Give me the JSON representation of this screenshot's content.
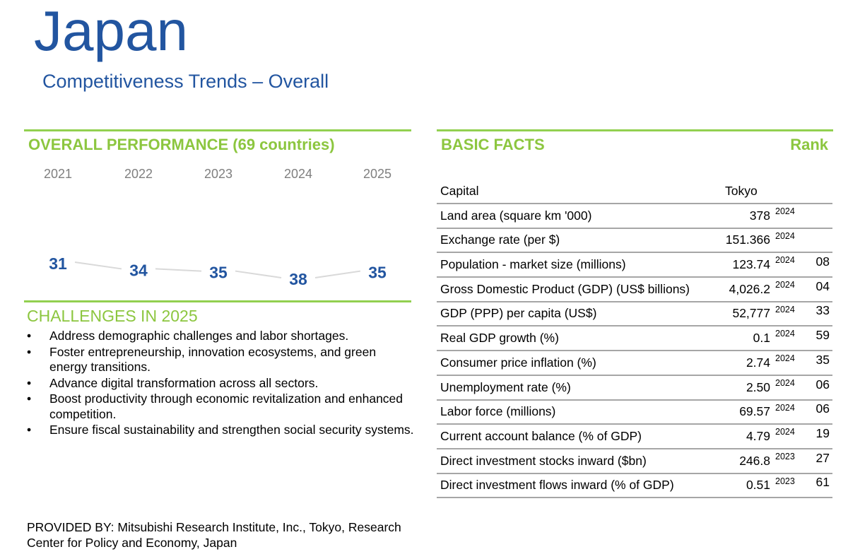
{
  "header": {
    "title": "Japan",
    "subtitle": "Competitiveness Trends – Overall"
  },
  "performance": {
    "heading": "OVERALL PERFORMANCE  (69 countries)",
    "colors": {
      "rank_text": "#2255a0",
      "connector": "#d9d9d9",
      "accent": "#8cc63f"
    }
  },
  "chart_data": {
    "type": "line",
    "title": "",
    "x": [
      "2021",
      "2022",
      "2023",
      "2024",
      "2025"
    ],
    "series": [
      {
        "values": [
          31,
          34,
          35,
          38,
          35
        ]
      }
    ],
    "y_inverted": true,
    "data_labels": true,
    "xlabel": "",
    "ylabel": ""
  },
  "challenges": {
    "heading": "CHALLENGES IN 2025",
    "items": [
      "Address demographic challenges and labor shortages.",
      "Foster entrepreneurship, innovation ecosystems, and green energy transitions.",
      "Advance digital transformation across all sectors.",
      "Boost productivity through economic revitalization and enhanced competition.",
      "Ensure fiscal sustainability and strengthen social security systems."
    ]
  },
  "basic_facts": {
    "heading": "BASIC FACTS",
    "rank_heading": "Rank",
    "rows": [
      {
        "label": "Capital",
        "value": "Tokyo",
        "year": "",
        "rank": ""
      },
      {
        "label": "Land area (square km '000)",
        "value": "378",
        "year": "2024",
        "rank": ""
      },
      {
        "label": "Exchange rate (per $)",
        "value": "151.366",
        "year": "2024",
        "rank": ""
      },
      {
        "label": "Population - market size (millions)",
        "value": "123.74",
        "year": "2024",
        "rank": "08"
      },
      {
        "label": "Gross Domestic Product (GDP) (US$ billions)",
        "value": "4,026.2",
        "year": "2024",
        "rank": "04"
      },
      {
        "label": "GDP (PPP) per capita (US$)",
        "value": "52,777",
        "year": "2024",
        "rank": "33"
      },
      {
        "label": "Real GDP growth (%)",
        "value": "0.1",
        "year": "2024",
        "rank": "59"
      },
      {
        "label": "Consumer price inflation (%)",
        "value": "2.74",
        "year": "2024",
        "rank": "35"
      },
      {
        "label": "Unemployment rate (%)",
        "value": "2.50",
        "year": "2024",
        "rank": "06"
      },
      {
        "label": "Labor force (millions)",
        "value": "69.57",
        "year": "2024",
        "rank": "06"
      },
      {
        "label": "Current account balance (% of GDP)",
        "value": "4.79",
        "year": "2024",
        "rank": "19"
      },
      {
        "label": "Direct investment stocks inward ($bn)",
        "value": "246.8",
        "year": "2023",
        "rank": "27"
      },
      {
        "label": "Direct investment flows inward (% of GDP)",
        "value": "0.51",
        "year": "2023",
        "rank": "61"
      }
    ]
  },
  "footer": {
    "provided_by": "PROVIDED BY: Mitsubishi Research Institute, Inc., Tokyo, Research Center for Policy and Economy, Japan"
  }
}
